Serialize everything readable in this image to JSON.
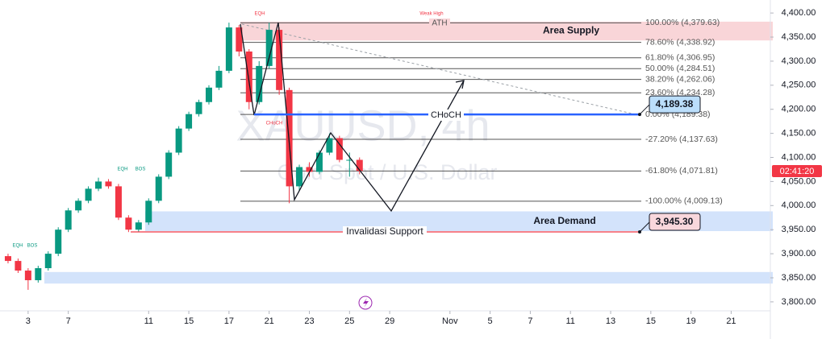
{
  "chart_data": {
    "type": "candlestick",
    "title": "XAUUSD, 4h",
    "subtitle": "Gold Spot / U.S. Dollar",
    "x": [
      -1,
      -0.5,
      0,
      0.5,
      1,
      1.5,
      2,
      2.5,
      3,
      3.5,
      4,
      4.5,
      5,
      5.5,
      6,
      6.5,
      7,
      7.5,
      8,
      8.5,
      9,
      9.5,
      10,
      10.5,
      11,
      11.5,
      12,
      12.5,
      13,
      13.5,
      14,
      14.5,
      15,
      15.5,
      16,
      16.5
    ],
    "open": [
      3895,
      3885,
      3865,
      3845,
      3870,
      3900,
      3950,
      3990,
      4010,
      4035,
      4050,
      4040,
      3975,
      3950,
      3965,
      4010,
      4060,
      4110,
      4160,
      4190,
      4215,
      4245,
      4280,
      4370,
      4320,
      4215,
      4290,
      4365,
      4240,
      4040,
      4080,
      4070,
      4110,
      4140,
      4095,
      4095
    ],
    "high": [
      3900,
      3890,
      3870,
      3875,
      3905,
      3955,
      3995,
      4015,
      4040,
      4058,
      4055,
      4045,
      3980,
      3970,
      4015,
      4065,
      4115,
      4165,
      4195,
      4220,
      4250,
      4290,
      4380,
      4375,
      4325,
      4300,
      4380,
      4370,
      4245,
      4085,
      4090,
      4115,
      4150,
      4145,
      4110,
      4100
    ],
    "low": [
      3880,
      3860,
      3825,
      3840,
      3865,
      3895,
      3945,
      3985,
      4005,
      4030,
      4035,
      3970,
      3945,
      3945,
      3960,
      4005,
      4055,
      4105,
      4155,
      4185,
      4210,
      4240,
      4275,
      4310,
      4200,
      4210,
      4285,
      4230,
      4005,
      4030,
      4060,
      4065,
      4105,
      4090,
      4060,
      4065
    ],
    "close": [
      3885,
      3865,
      3845,
      3870,
      3900,
      3950,
      3990,
      4010,
      4035,
      4050,
      4040,
      3975,
      3950,
      3965,
      4010,
      4060,
      4110,
      4160,
      4190,
      4215,
      4245,
      4280,
      4370,
      4320,
      4215,
      4290,
      4365,
      4240,
      4040,
      4080,
      4070,
      4110,
      4140,
      4095,
      4095,
      4072
    ],
    "up_color": "#089981",
    "down_color": "#f23645",
    "xlim": [
      -1.4,
      36.95
    ],
    "xticks": [
      {
        "value": 0,
        "label": "3"
      },
      {
        "value": 2,
        "label": "7"
      },
      {
        "value": 6,
        "label": "11"
      },
      {
        "value": 8,
        "label": "15"
      },
      {
        "value": 10,
        "label": "17"
      },
      {
        "value": 12,
        "label": "21"
      },
      {
        "value": 14,
        "label": "23"
      },
      {
        "value": 16,
        "label": "25"
      },
      {
        "value": 18,
        "label": "29"
      },
      {
        "value": 21,
        "label": "Nov"
      },
      {
        "value": 23,
        "label": "5"
      },
      {
        "value": 25,
        "label": "7"
      },
      {
        "value": 27,
        "label": "11"
      },
      {
        "value": 29,
        "label": "13"
      },
      {
        "value": 31,
        "label": "15"
      },
      {
        "value": 33,
        "label": "19"
      },
      {
        "value": 35,
        "label": "21"
      }
    ],
    "ylim": [
      3758,
      4427
    ],
    "yticks": [
      {
        "value": 3800,
        "label": "3,800.00"
      },
      {
        "value": 3850,
        "label": "3,850.00"
      },
      {
        "value": 3900,
        "label": "3,900.00"
      },
      {
        "value": 3950,
        "label": "3,950.00"
      },
      {
        "value": 4000,
        "label": "4,000.00"
      },
      {
        "value": 4050,
        "label": "4,050.00"
      },
      {
        "value": 4100,
        "label": "4,100.00"
      },
      {
        "value": 4150,
        "label": "4,150.00"
      },
      {
        "value": 4200,
        "label": "4,200.00"
      },
      {
        "value": 4250,
        "label": "4,250.00"
      },
      {
        "value": 4300,
        "label": "4,300.00"
      },
      {
        "value": 4350,
        "label": "4,350.00"
      },
      {
        "value": 4400,
        "label": "4,400.00"
      }
    ],
    "zones": [
      {
        "name": "Area Supply",
        "from": 4343,
        "to": 4382,
        "color": "#f9d5d8"
      },
      {
        "name": "Area Demand",
        "from": 3947,
        "to": 3988,
        "color": "#d3e3fb"
      },
      {
        "from": 3838,
        "to": 3862,
        "color": "#d3e3fb"
      }
    ],
    "fib_levels": [
      {
        "price": 4379.63,
        "label": "100.00% (4,379.63)"
      },
      {
        "price": 4338.92,
        "label": "78.60% (4,338.92)"
      },
      {
        "price": 4306.95,
        "label": "61.80% (4,306.95)"
      },
      {
        "price": 4284.51,
        "label": "50.00% (4,284.51)"
      },
      {
        "price": 4262.06,
        "label": "38.20% (4,262.06)"
      },
      {
        "price": 4234.28,
        "label": "23.60% (4,234.28)"
      },
      {
        "price": 4189.38,
        "label": "0.00% (4,189.38)"
      },
      {
        "price": 4137.63,
        "label": "-27.20% (4,137.63)"
      },
      {
        "price": 4071.81,
        "label": "-61.80% (4,071.81)"
      },
      {
        "price": 4009.13,
        "label": "-100.00% (4,009.13)"
      }
    ],
    "levels": [
      {
        "name": "Invalidasi Support",
        "value": 3945.3,
        "label": "3,945.30",
        "color": "#f23645",
        "fill": "#f8d7dc"
      },
      {
        "name": "CHoCH",
        "value": 4189.38,
        "label": "4,189.38",
        "color": "#2962ff",
        "fill": "#bbdefb"
      }
    ],
    "annotations": [
      "EQH",
      "Weak High",
      "ATH",
      "EQH",
      "BOS",
      "EQH",
      "BOS",
      "CHoCH"
    ],
    "countdown": "02:41:20"
  }
}
